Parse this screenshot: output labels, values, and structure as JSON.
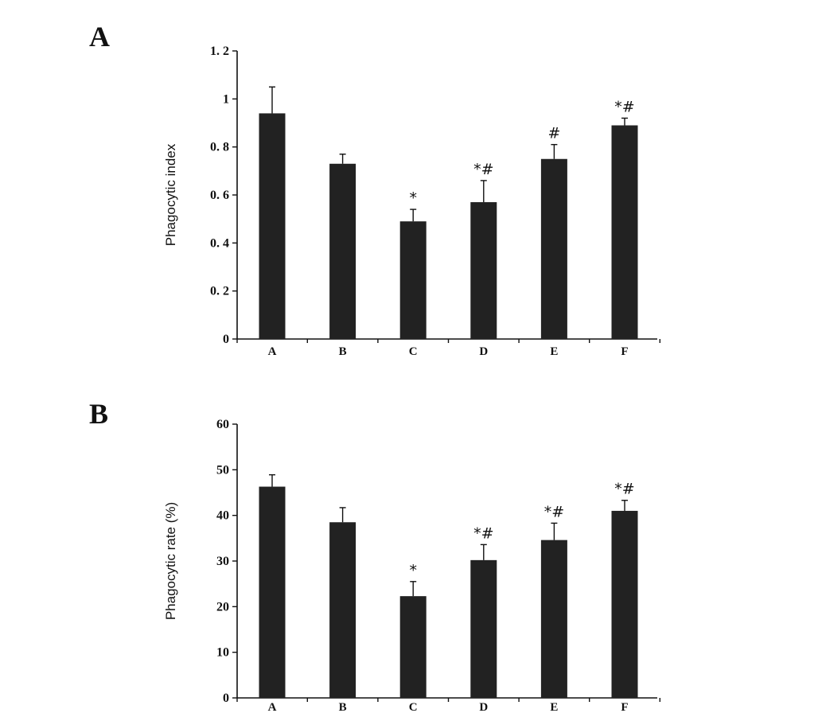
{
  "chart_data": [
    {
      "type": "bar",
      "panel_label": "A",
      "ylabel": "Phagocytic index",
      "categories": [
        "A",
        "B",
        "C",
        "D",
        "E",
        "F"
      ],
      "values": [
        0.94,
        0.73,
        0.49,
        0.57,
        0.75,
        0.89
      ],
      "errors": [
        0.11,
        0.04,
        0.05,
        0.09,
        0.06,
        0.03
      ],
      "annotations": [
        "",
        "",
        "*",
        "*#",
        "#",
        "*#"
      ],
      "ylim": [
        0,
        1.2
      ],
      "yticks": [
        0,
        0.2,
        0.4,
        0.6,
        0.8,
        1,
        1.2
      ],
      "ytick_labels": [
        "0",
        "0. 2",
        "0. 4",
        "0. 6",
        "0. 8",
        "1",
        "1. 2"
      ],
      "grid": false,
      "colors": {
        "bar": "#222222"
      }
    },
    {
      "type": "bar",
      "panel_label": "B",
      "ylabel": "Phagocytic rate (%)",
      "categories": [
        "A",
        "B",
        "C",
        "D",
        "E",
        "F"
      ],
      "values": [
        46.3,
        38.5,
        22.3,
        30.2,
        34.6,
        41.0
      ],
      "errors": [
        2.6,
        3.2,
        3.2,
        3.4,
        3.7,
        2.3
      ],
      "annotations": [
        "",
        "",
        "*",
        "*#",
        "*#",
        "*#"
      ],
      "ylim": [
        0,
        60
      ],
      "yticks": [
        0,
        10,
        20,
        30,
        40,
        50,
        60
      ],
      "ytick_labels": [
        "0",
        "10",
        "20",
        "30",
        "40",
        "50",
        "60"
      ],
      "grid": false,
      "colors": {
        "bar": "#222222"
      }
    }
  ]
}
